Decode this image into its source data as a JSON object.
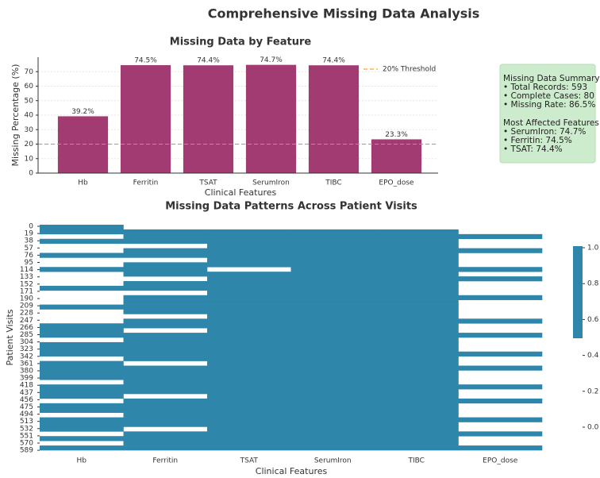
{
  "title": "Comprehensive Missing Data Analysis",
  "chart_data": [
    {
      "type": "bar",
      "title": "Missing Data by Feature",
      "xlabel": "Clinical Features",
      "ylabel": "Missing Percentage (%)",
      "categories": [
        "Hb",
        "Ferritin",
        "TSAT",
        "SerumIron",
        "TIBC",
        "EPO_dose"
      ],
      "values": [
        39.2,
        74.5,
        74.4,
        74.7,
        74.4,
        23.3
      ],
      "value_labels": [
        "39.2%",
        "74.5%",
        "74.4%",
        "74.7%",
        "74.4%",
        "23.3%"
      ],
      "color": "#a23b72",
      "ylim": [
        0,
        80
      ],
      "yticks": [
        0,
        10,
        20,
        30,
        40,
        50,
        60,
        70
      ],
      "grid": true,
      "threshold": {
        "value": 20,
        "label": "20% Threshold",
        "color": "#f18f01"
      },
      "legend": "upper right"
    },
    {
      "type": "heatmap",
      "title": "Missing Data Patterns Across Patient Visits",
      "xlabel": "Clinical Features",
      "ylabel": "Patient Visits",
      "columns": [
        "Hb",
        "Ferritin",
        "TSAT",
        "SerumIron",
        "TIBC",
        "EPO_dose"
      ],
      "color": "#2e86ab",
      "ylim": [
        0,
        593
      ],
      "yticks": [
        0,
        19,
        38,
        57,
        76,
        95,
        114,
        133,
        152,
        171,
        190,
        209,
        228,
        247,
        266,
        285,
        304,
        323,
        342,
        361,
        380,
        399,
        418,
        437,
        456,
        475,
        494,
        513,
        532,
        551,
        570,
        589
      ],
      "values": [
        [
          1,
          1,
          0,
          1,
          0,
          0,
          1,
          0,
          0,
          1,
          0,
          0,
          0,
          1,
          0,
          0,
          0,
          1,
          0,
          0,
          0,
          1,
          1,
          1,
          0,
          1,
          1,
          1,
          0,
          1,
          1,
          1,
          1,
          0,
          1,
          1,
          1,
          0,
          1,
          1,
          0,
          1,
          1,
          1,
          0,
          1,
          0,
          1
        ],
        [
          0,
          1,
          1,
          1,
          0,
          1,
          1,
          0,
          1,
          1,
          1,
          0,
          1,
          1,
          0,
          1,
          1,
          1,
          1,
          0,
          1,
          1,
          0,
          1,
          1,
          1,
          1,
          1,
          1,
          0,
          1,
          1,
          1,
          1,
          1,
          1,
          0,
          1,
          1,
          1,
          1,
          1,
          1,
          0,
          1,
          1,
          1,
          1
        ],
        [
          0,
          1,
          1,
          1,
          1,
          1,
          1,
          1,
          1,
          0,
          1,
          1,
          1,
          1,
          1,
          1,
          1,
          1,
          1,
          1,
          1,
          1,
          1,
          1,
          1,
          1,
          1,
          1,
          1,
          1,
          1,
          1,
          1,
          1,
          1,
          1,
          1,
          1,
          1,
          1,
          1,
          1,
          1,
          1,
          1,
          1,
          1,
          1
        ],
        [
          0,
          1,
          1,
          1,
          1,
          1,
          1,
          1,
          1,
          1,
          1,
          1,
          1,
          1,
          1,
          1,
          1,
          1,
          1,
          1,
          1,
          1,
          1,
          1,
          1,
          1,
          1,
          1,
          1,
          1,
          1,
          1,
          1,
          1,
          1,
          1,
          1,
          1,
          1,
          1,
          1,
          1,
          1,
          1,
          1,
          1,
          1,
          1
        ],
        [
          0,
          1,
          1,
          1,
          1,
          1,
          1,
          1,
          1,
          1,
          1,
          1,
          1,
          1,
          1,
          1,
          1,
          1,
          1,
          1,
          1,
          1,
          1,
          1,
          1,
          1,
          1,
          1,
          1,
          1,
          1,
          1,
          1,
          1,
          1,
          1,
          1,
          1,
          1,
          1,
          1,
          1,
          1,
          1,
          1,
          1,
          1,
          1
        ],
        [
          0,
          0,
          1,
          0,
          0,
          1,
          0,
          0,
          0,
          1,
          0,
          1,
          0,
          0,
          0,
          1,
          0,
          0,
          0,
          0,
          1,
          0,
          0,
          1,
          0,
          0,
          0,
          1,
          0,
          0,
          1,
          0,
          0,
          0,
          1,
          0,
          0,
          1,
          0,
          0,
          0,
          1,
          0,
          0,
          1,
          0,
          0,
          1
        ]
      ],
      "clim": [
        0,
        1
      ],
      "cticks": [
        {
          "value": 0,
          "label": "0.0"
        },
        {
          "value": 0.2,
          "label": "0.2"
        },
        {
          "value": 0.4,
          "label": "0.4"
        },
        {
          "value": 0.6,
          "label": "0.6"
        },
        {
          "value": 0.8,
          "label": "0.8"
        },
        {
          "value": 1,
          "label": "1.0"
        }
      ]
    }
  ],
  "summary": {
    "heading": "Missing Data Summary:",
    "lines": [
      "• Total Records: 593",
      "• Complete Cases: 80",
      "• Missing Rate: 86.5%"
    ],
    "heading2": "Most Affected Features:",
    "lines2": [
      "• SerumIron: 74.7%",
      "• Ferritin: 74.5%",
      "• TSAT: 74.4%"
    ]
  }
}
